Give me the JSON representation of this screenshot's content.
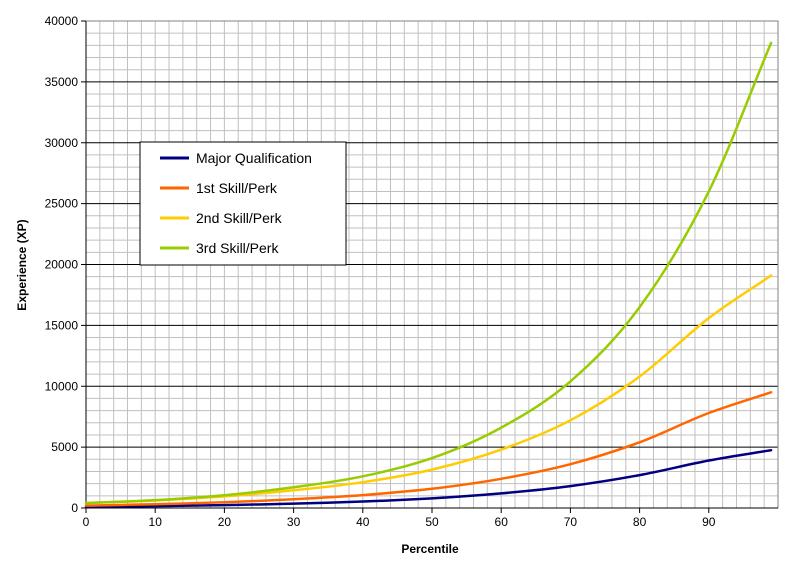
{
  "chart_data": {
    "type": "line",
    "title": "",
    "xlabel": "Percentile",
    "ylabel": "Experience (XP)",
    "xlim": [
      0,
      100
    ],
    "ylim": [
      0,
      40000
    ],
    "x_ticks": [
      0,
      10,
      20,
      30,
      40,
      50,
      60,
      70,
      80,
      90
    ],
    "y_ticks": [
      0,
      5000,
      10000,
      15000,
      20000,
      25000,
      30000,
      35000,
      40000
    ],
    "grid": "major horizontal black, minor horizontal and vertical gray",
    "legend_position": "upper-left",
    "x": [
      0,
      10,
      20,
      30,
      40,
      50,
      60,
      70,
      80,
      90,
      99
    ],
    "series": [
      {
        "name": "Major Qualification",
        "color": "#000080",
        "values": [
          100,
          160,
          240,
          360,
          530,
          790,
          1200,
          1800,
          2700,
          3900,
          4750
        ]
      },
      {
        "name": "1st Skill/Perk",
        "color": "#ff6600",
        "values": [
          200,
          310,
          470,
          720,
          1060,
          1580,
          2400,
          3600,
          5400,
          7800,
          9500
        ]
      },
      {
        "name": "2nd Skill/Perk",
        "color": "#ffcc00",
        "values": [
          400,
          620,
          950,
          1450,
          2120,
          3150,
          4800,
          7200,
          10800,
          15600,
          19100
        ]
      },
      {
        "name": "3rd Skill/Perk",
        "color": "#99cc00",
        "values": [
          400,
          650,
          1050,
          1700,
          2600,
          4100,
          6600,
          10400,
          16500,
          26000,
          38200
        ]
      }
    ]
  }
}
